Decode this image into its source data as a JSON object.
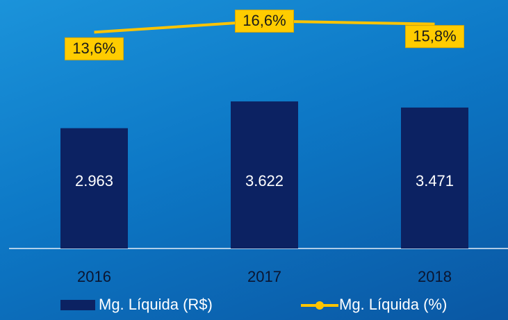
{
  "chart_data": {
    "type": "bar+line",
    "categories": [
      "2016",
      "2017",
      "2018"
    ],
    "series": [
      {
        "name": "Mg. Líquida (R$)",
        "type": "bar",
        "color": "#0c2262",
        "values": [
          2963,
          3622,
          3471
        ],
        "value_labels": [
          "2.963",
          "3.622",
          "3.471"
        ]
      },
      {
        "name": "Mg. Líquida (%)",
        "type": "line",
        "axis": "y2",
        "color": "#ffc400",
        "values": [
          13.6,
          16.6,
          15.8
        ],
        "value_labels": [
          "13,6%",
          "16,6%",
          "15,8%"
        ]
      }
    ],
    "ylim": [
      0,
      6000
    ],
    "y2lim": [
      -45,
      21
    ]
  }
}
